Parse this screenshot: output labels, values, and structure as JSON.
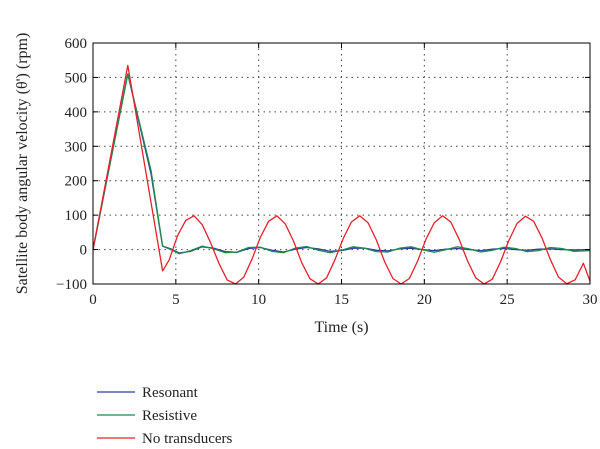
{
  "chart_data": {
    "type": "line",
    "xlabel": "Time (s)",
    "ylabel": "Satellite body angular velocity (θ') (rpm)",
    "xlim": [
      0,
      30
    ],
    "ylim": [
      -100,
      600
    ],
    "xticks": [
      "0",
      "5",
      "10",
      "15",
      "20",
      "25",
      "30"
    ],
    "yticks": [
      "−100",
      "0",
      "100",
      "200",
      "300",
      "400",
      "500",
      "600"
    ],
    "grid": "dotted vertical and horizontal at ticks",
    "legend_position": "bottom-left, below plot",
    "series": [
      {
        "name": "Resonant",
        "color": "#2b3aa8",
        "x": [
          0,
          2.1,
          3.5,
          4.2,
          4.7,
          5.2,
          5.9,
          6.6,
          7.3,
          8.0,
          8.7,
          9.4,
          10.1,
          10.8,
          11.5,
          12.2,
          12.9,
          13.6,
          14.3,
          15.0,
          15.7,
          16.4,
          17.1,
          17.8,
          18.5,
          19.2,
          19.9,
          20.6,
          21.3,
          22.0,
          22.7,
          23.4,
          24.1,
          24.8,
          25.5,
          26.2,
          26.9,
          27.6,
          28.3,
          29.0,
          30.0
        ],
        "y": [
          0,
          510,
          220,
          10,
          2,
          -10,
          -5,
          8,
          4,
          -6,
          -8,
          3,
          6,
          -2,
          -7,
          1,
          6,
          2,
          -5,
          -3,
          4,
          4,
          -2,
          -4,
          2,
          4,
          0,
          -3,
          1,
          3,
          0,
          -3,
          1,
          3,
          0,
          -2,
          1,
          2,
          0,
          -1,
          0
        ]
      },
      {
        "name": "Resistive",
        "color": "#1f8a4c",
        "x": [
          0,
          2.1,
          3.5,
          4.2,
          4.7,
          5.2,
          5.9,
          6.6,
          7.3,
          8.0,
          8.7,
          9.4,
          10.1,
          10.8,
          11.5,
          12.2,
          12.9,
          13.6,
          14.3,
          15.0,
          15.7,
          16.4,
          17.1,
          17.8,
          18.5,
          19.2,
          19.9,
          20.6,
          21.3,
          22.0,
          22.7,
          23.4,
          24.1,
          24.8,
          25.5,
          26.2,
          26.9,
          27.6,
          28.3,
          29.0,
          30.0
        ],
        "y": [
          0,
          510,
          230,
          10,
          0,
          -12,
          -3,
          10,
          2,
          -9,
          -7,
          6,
          7,
          -5,
          -9,
          4,
          9,
          -2,
          -9,
          -2,
          8,
          4,
          -6,
          -7,
          4,
          8,
          -1,
          -8,
          0,
          8,
          2,
          -7,
          -2,
          7,
          3,
          -6,
          -3,
          6,
          3,
          -5,
          -3
        ]
      },
      {
        "name": "No transducers",
        "color": "#e8202a",
        "x": [
          0,
          2.1,
          4.2,
          4.6,
          5.1,
          5.6,
          6.1,
          6.6,
          7.1,
          7.6,
          8.1,
          8.6,
          9.1,
          9.6,
          10.1,
          10.6,
          11.1,
          11.6,
          12.1,
          12.6,
          13.1,
          13.6,
          14.1,
          14.6,
          15.1,
          15.6,
          16.1,
          16.6,
          17.1,
          17.6,
          18.1,
          18.6,
          19.1,
          19.6,
          20.1,
          20.6,
          21.1,
          21.6,
          22.1,
          22.6,
          23.1,
          23.6,
          24.1,
          24.6,
          25.1,
          25.6,
          26.1,
          26.6,
          27.1,
          27.6,
          28.1,
          28.6,
          29.1,
          29.6,
          30.0
        ],
        "y": [
          0,
          535,
          -62,
          -30,
          40,
          85,
          98,
          72,
          20,
          -40,
          -88,
          -100,
          -80,
          -28,
          35,
          82,
          98,
          75,
          25,
          -38,
          -85,
          -100,
          -82,
          -30,
          32,
          80,
          98,
          78,
          28,
          -35,
          -84,
          -100,
          -84,
          -33,
          30,
          78,
          98,
          80,
          30,
          -32,
          -82,
          -100,
          -86,
          -36,
          26,
          76,
          97,
          82,
          34,
          -28,
          -80,
          -99,
          -88,
          -40,
          -92
        ]
      }
    ]
  }
}
